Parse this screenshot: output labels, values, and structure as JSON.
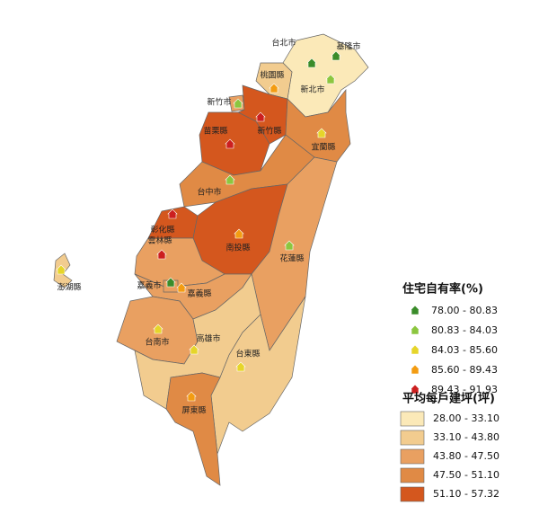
{
  "map": {
    "regions": [
      {
        "label": "台北市",
        "area_class": 0,
        "ownership_class": 0
      },
      {
        "label": "基隆市",
        "area_class": 0,
        "ownership_class": 0
      },
      {
        "label": "新北市",
        "area_class": 0,
        "ownership_class": 1
      },
      {
        "label": "桃園縣",
        "area_class": 1,
        "ownership_class": 3
      },
      {
        "label": "新竹市",
        "area_class": 2,
        "ownership_class": 1
      },
      {
        "label": "新竹縣",
        "area_class": 4,
        "ownership_class": 4
      },
      {
        "label": "苗栗縣",
        "area_class": 4,
        "ownership_class": 4
      },
      {
        "label": "宜蘭縣",
        "area_class": 3,
        "ownership_class": 2
      },
      {
        "label": "台中市",
        "area_class": 3,
        "ownership_class": 1
      },
      {
        "label": "彰化縣",
        "area_class": 4,
        "ownership_class": 4
      },
      {
        "label": "南投縣",
        "area_class": 4,
        "ownership_class": 3
      },
      {
        "label": "花蓮縣",
        "area_class": 2,
        "ownership_class": 1
      },
      {
        "label": "雲林縣",
        "area_class": 2,
        "ownership_class": 4
      },
      {
        "label": "嘉義縣",
        "area_class": 2,
        "ownership_class": 3
      },
      {
        "label": "嘉義市",
        "area_class": 2,
        "ownership_class": 0
      },
      {
        "label": "台南市",
        "area_class": 2,
        "ownership_class": 2
      },
      {
        "label": "高雄市",
        "area_class": 1,
        "ownership_class": 2
      },
      {
        "label": "台東縣",
        "area_class": 1,
        "ownership_class": 2
      },
      {
        "label": "屏東縣",
        "area_class": 3,
        "ownership_class": 3
      },
      {
        "label": "澎湖縣",
        "area_class": 1,
        "ownership_class": 2
      }
    ],
    "ownership_legend": {
      "title": "住宅自有率(%)",
      "items": [
        {
          "label": "78.00 - 80.83",
          "color": "#3a8c2a"
        },
        {
          "label": "80.83 - 84.03",
          "color": "#8cc63f"
        },
        {
          "label": "84.03 - 85.60",
          "color": "#e6d52a"
        },
        {
          "label": "85.60 - 89.43",
          "color": "#f39c12"
        },
        {
          "label": "89.43 - 91.93",
          "color": "#cc1f1f"
        }
      ]
    },
    "area_legend": {
      "title": "平均每戶建坪(坪)",
      "items": [
        {
          "label": "28.00 - 33.10",
          "color": "#fbe9b8"
        },
        {
          "label": "33.10 - 43.80",
          "color": "#f2cc8f"
        },
        {
          "label": "43.80 - 47.50",
          "color": "#e9a061"
        },
        {
          "label": "47.50 - 51.10",
          "color": "#e08a45"
        },
        {
          "label": "51.10 - 57.32",
          "color": "#d4571e"
        }
      ]
    }
  }
}
